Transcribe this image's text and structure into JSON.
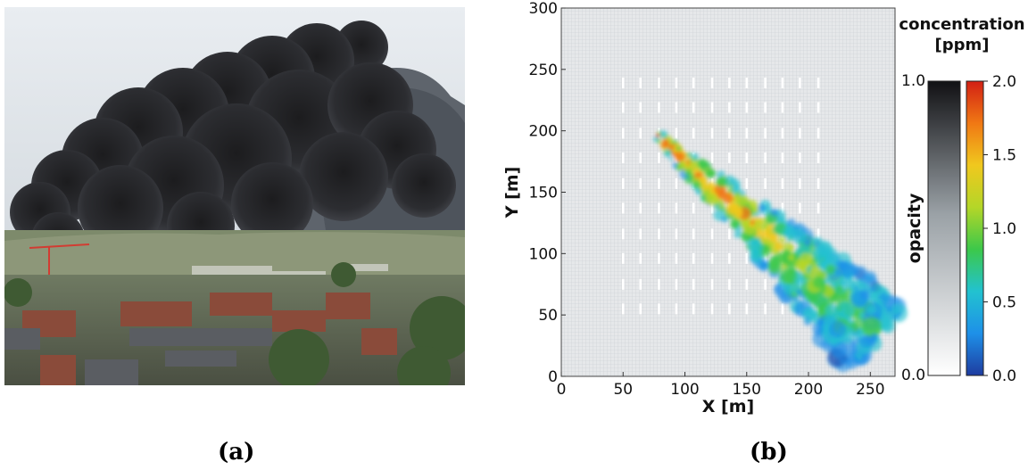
{
  "captions": {
    "a": "(a)",
    "b": "(b)"
  },
  "photo": {
    "subject": "photo of a dark smoke plume over a town"
  },
  "chart_data": {
    "type": "heatmap",
    "xlabel": "X [m]",
    "ylabel": "Y [m]",
    "xlim": [
      0,
      270
    ],
    "ylim": [
      0,
      300
    ],
    "xticks": [
      0,
      50,
      100,
      150,
      200,
      250
    ],
    "yticks": [
      0,
      50,
      100,
      150,
      200,
      250,
      300
    ],
    "colorbar_title": [
      "concentration",
      "[ppm]"
    ],
    "concentration_ticks": [
      "0.0",
      "0.5",
      "1.0",
      "1.5",
      "2.0"
    ],
    "concentration_range": [
      0,
      2
    ],
    "opacity_label": "opacity",
    "opacity_ticks": [
      "0.0",
      "1.0"
    ],
    "opacity_range": [
      0,
      1
    ],
    "colormap": [
      "#1e3ca0",
      "#1e90e8",
      "#22c2d0",
      "#3cc84a",
      "#b4d628",
      "#f0c81e",
      "#f07814",
      "#d22014"
    ],
    "source_point": [
      78,
      196
    ],
    "plume_end": [
      258,
      30
    ],
    "building_columns_x": [
      50,
      64,
      79,
      93,
      107,
      122,
      136,
      150,
      165,
      179,
      193,
      208
    ],
    "building_rows_y": [
      55,
      75,
      96,
      116,
      137,
      157,
      178,
      198,
      219,
      239
    ]
  }
}
